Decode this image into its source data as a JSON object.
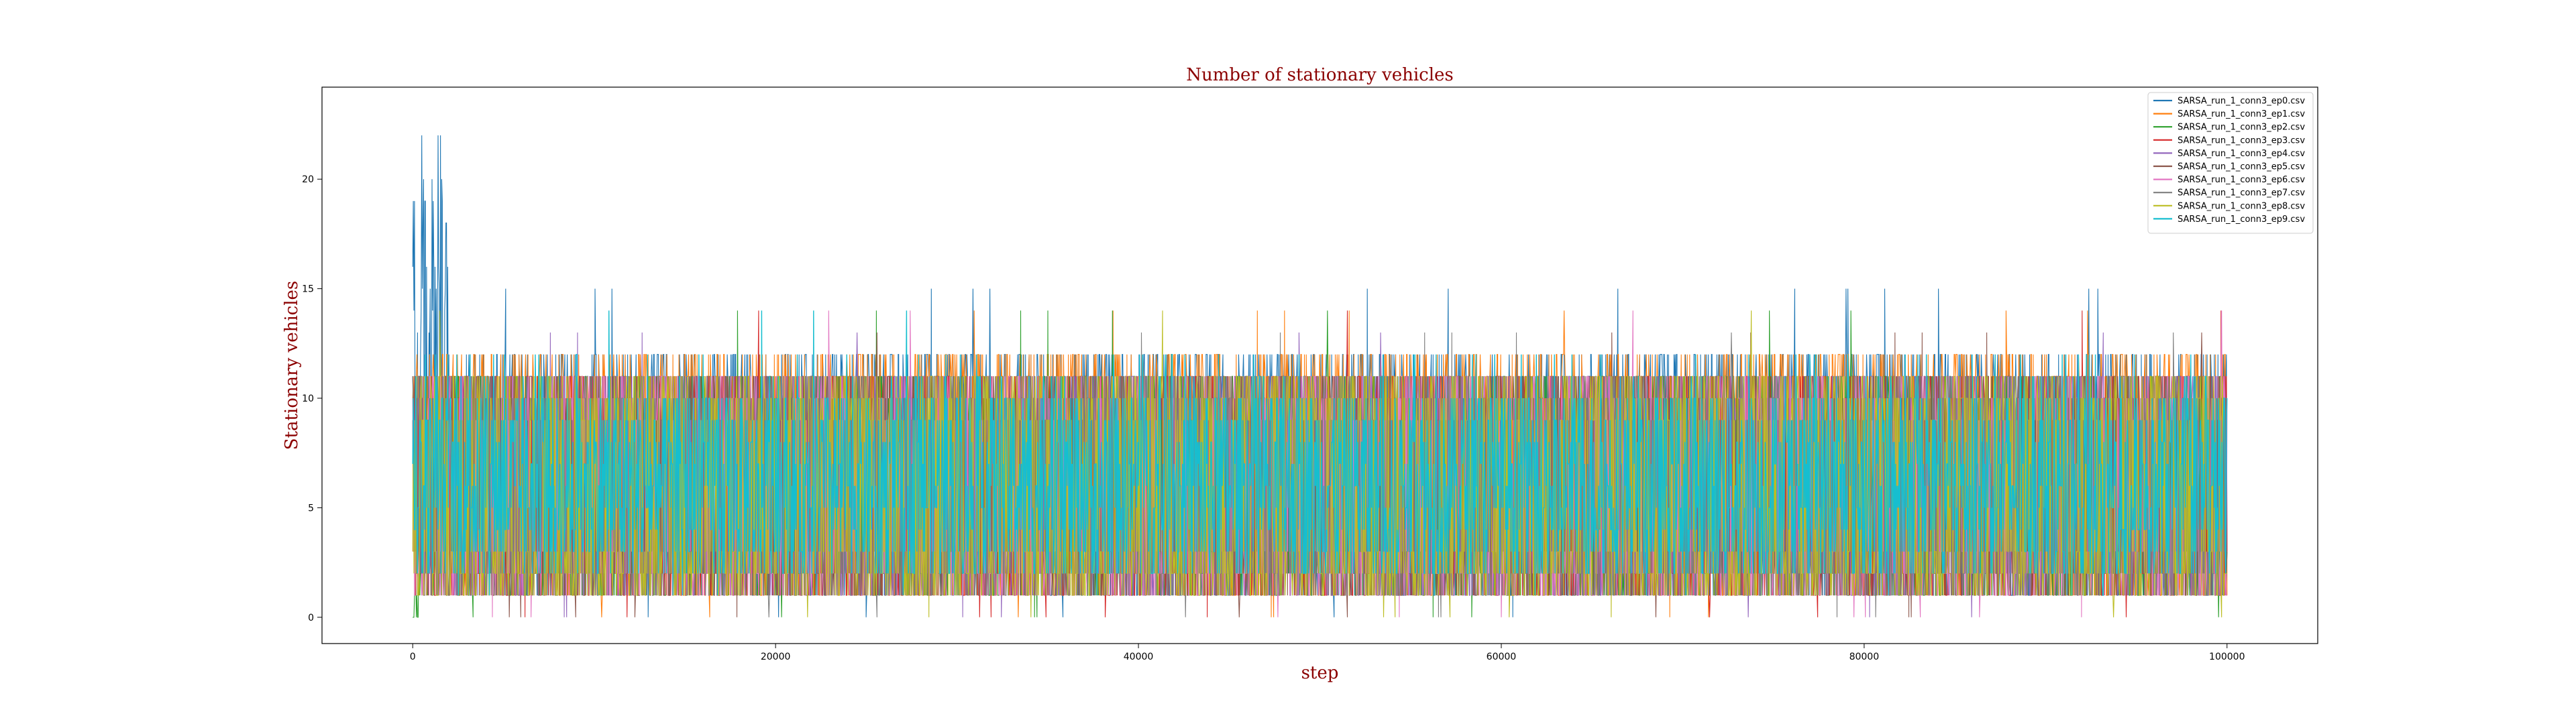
{
  "chart_data": {
    "type": "line",
    "title": "Number of stationary vehicles",
    "xlabel": "step",
    "ylabel": "Stationary vehicles",
    "xlim": [
      -5000,
      105000
    ],
    "ylim": [
      -1.2,
      24.2
    ],
    "x_ticks": [
      0,
      20000,
      40000,
      60000,
      80000,
      100000
    ],
    "x_tick_labels": [
      "0",
      "20000",
      "40000",
      "60000",
      "80000",
      "100000"
    ],
    "y_ticks": [
      0,
      5,
      10,
      15,
      20
    ],
    "y_tick_labels": [
      "0",
      "5",
      "10",
      "15",
      "20"
    ],
    "grid": false,
    "legend_position": "top-right",
    "x_range": [
      0,
      100000
    ],
    "series": [
      {
        "name": "SARSA_run_1_conn3_ep0.csv",
        "color": "#1f77b4",
        "typical_range": [
          1,
          12
        ],
        "early_peak_max": 23,
        "max_after_peak": 15
      },
      {
        "name": "SARSA_run_1_conn3_ep1.csv",
        "color": "#ff7f0e",
        "typical_range": [
          1,
          12
        ],
        "max": 14
      },
      {
        "name": "SARSA_run_1_conn3_ep2.csv",
        "color": "#2ca02c",
        "typical_range": [
          1,
          11
        ],
        "max": 14
      },
      {
        "name": "SARSA_run_1_conn3_ep3.csv",
        "color": "#d62728",
        "typical_range": [
          1,
          11
        ],
        "max": 14
      },
      {
        "name": "SARSA_run_1_conn3_ep4.csv",
        "color": "#9467bd",
        "typical_range": [
          1,
          11
        ],
        "max": 13
      },
      {
        "name": "SARSA_run_1_conn3_ep5.csv",
        "color": "#8c564b",
        "typical_range": [
          1,
          11
        ],
        "max": 13
      },
      {
        "name": "SARSA_run_1_conn3_ep6.csv",
        "color": "#e377c2",
        "typical_range": [
          1,
          11
        ],
        "max": 14
      },
      {
        "name": "SARSA_run_1_conn3_ep7.csv",
        "color": "#7f7f7f",
        "typical_range": [
          1,
          11
        ],
        "max": 13
      },
      {
        "name": "SARSA_run_1_conn3_ep8.csv",
        "color": "#bcbd22",
        "typical_range": [
          1,
          11
        ],
        "max": 14
      },
      {
        "name": "SARSA_run_1_conn3_ep9.csv",
        "color": "#17becf",
        "typical_range": [
          1,
          12
        ],
        "max": 14,
        "dense_band": [
          2,
          10
        ]
      }
    ]
  }
}
